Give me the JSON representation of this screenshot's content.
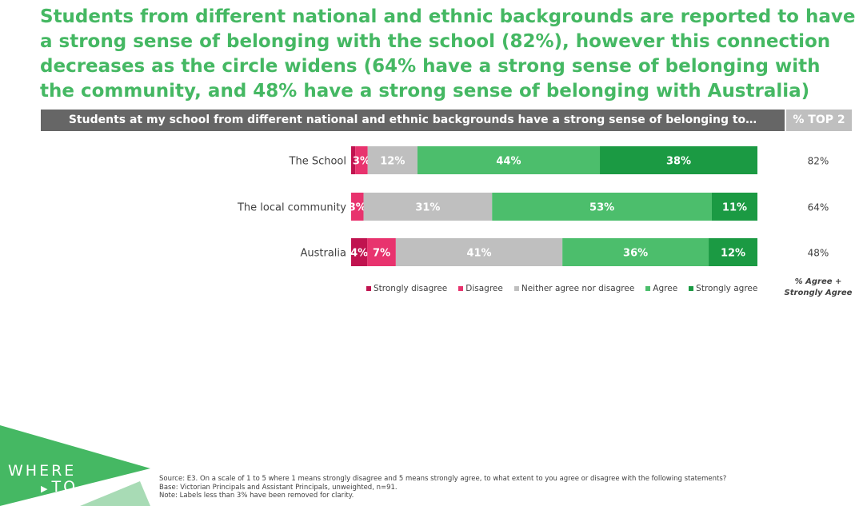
{
  "headline": "Students from different national and ethnic backgrounds are reported to have a strong sense of belonging with the school (82%), however this connection decreases as the circle widens (64% have a strong sense of belonging with the community, and 48% have a strong sense of belonging with Australia)",
  "banner_text": "Students at my school from different national and ethnic backgrounds have a strong sense of belonging to…",
  "top2_header": "% TOP 2",
  "top2_note": "% Agree + Strongly Agree",
  "logo": {
    "line1": "WHERE",
    "line2": "TO"
  },
  "footnotes": [
    "Source: E3. On a scale of 1 to 5 where 1 means strongly disagree and 5 means strongly agree, to what extent to you agree or disagree with the following statements?",
    "Base: Victorian Principals and Assistant Principals, unweighted, n=91.",
    "Note: Labels less than 3% have been removed for clarity."
  ],
  "colors": {
    "headline": "#45b863",
    "strongly_disagree": "#c0134f",
    "disagree": "#e8336e",
    "neither": "#bfbfbf",
    "agree": "#4cbe6c",
    "strongly_agree": "#1b9a43",
    "banner": "#666666"
  },
  "chart_data": {
    "type": "bar",
    "orientation": "horizontal",
    "stacked": true,
    "categories": [
      "The School",
      "The local community",
      "Australia"
    ],
    "series": [
      {
        "name": "Strongly disagree",
        "values": [
          1,
          0,
          4
        ],
        "labels": [
          "",
          "",
          "4%"
        ],
        "color": "#c0134f"
      },
      {
        "name": "Disagree",
        "values": [
          3,
          3,
          7
        ],
        "labels": [
          "3%",
          "3%",
          "7%"
        ],
        "color": "#e8336e"
      },
      {
        "name": "Neither agree nor disagree",
        "values": [
          12,
          31,
          41
        ],
        "labels": [
          "12%",
          "31%",
          "41%"
        ],
        "color": "#bfbfbf"
      },
      {
        "name": "Agree",
        "values": [
          44,
          53,
          36
        ],
        "labels": [
          "44%",
          "53%",
          "36%"
        ],
        "color": "#4cbe6c"
      },
      {
        "name": "Strongly agree",
        "values": [
          38,
          11,
          12
        ],
        "labels": [
          "38%",
          "11%",
          "12%"
        ],
        "color": "#1b9a43"
      }
    ],
    "top2": [
      "82%",
      "64%",
      "48%"
    ],
    "legend_position": "bottom"
  }
}
